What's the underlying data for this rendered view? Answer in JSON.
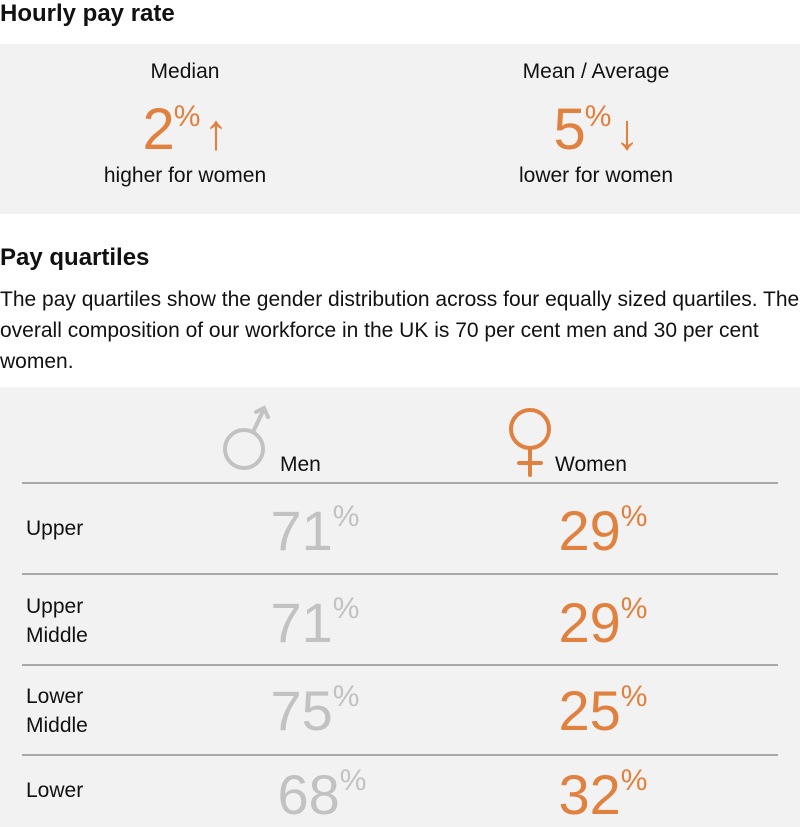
{
  "hourly": {
    "title": "Hourly pay rate",
    "median": {
      "label": "Median",
      "value": "2",
      "unit": "%",
      "direction": "up",
      "caption": "higher for women"
    },
    "mean": {
      "label": "Mean / Average",
      "value": "5",
      "unit": "%",
      "direction": "down",
      "caption": "lower for women"
    }
  },
  "quartiles": {
    "title": "Pay quartiles",
    "description": "The pay quartiles show the gender distribution across four equally sized quartiles. The overall composition of our workforce in the UK is 70 per cent men and 30 per cent women.",
    "men_label": "Men",
    "women_label": "Women",
    "rows": [
      {
        "label": "Upper",
        "men": "71",
        "women": "29"
      },
      {
        "label": "Upper Middle",
        "men": "71",
        "women": "29"
      },
      {
        "label": "Lower Middle",
        "men": "75",
        "women": "25"
      },
      {
        "label": "Lower",
        "men": "68",
        "women": "32"
      }
    ],
    "unit": "%"
  },
  "colors": {
    "accent": "#e0813f",
    "men": "#c2c2c2",
    "panel": "#f2f2f2"
  },
  "icons": [
    "arrow-up-icon",
    "arrow-down-icon",
    "male-symbol-icon",
    "female-symbol-icon"
  ]
}
